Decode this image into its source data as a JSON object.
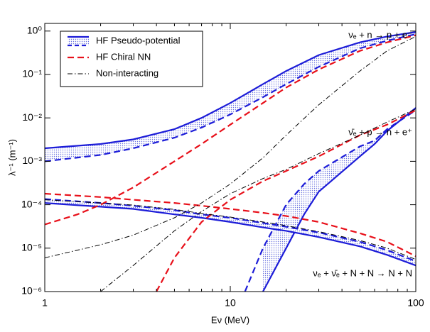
{
  "chart_data": {
    "type": "line",
    "xlabel": "Eν (MeV)",
    "ylabel": "λ⁻¹ (m⁻¹)",
    "xscale": "log",
    "yscale": "log",
    "xlim": [
      1,
      100
    ],
    "ylim": [
      1e-06,
      1.5
    ],
    "xticks": [
      1,
      10,
      100
    ],
    "xminorticks": [
      2,
      3,
      4,
      5,
      6,
      7,
      8,
      9,
      20,
      30,
      40,
      50,
      60,
      70,
      80,
      90
    ],
    "yticks": [
      {
        "value": 1e-06,
        "label": "10⁻⁶"
      },
      {
        "value": 1e-05,
        "label": "10⁻⁵"
      },
      {
        "value": 0.0001,
        "label": "10⁻⁴"
      },
      {
        "value": 0.001,
        "label": "10⁻³"
      },
      {
        "value": 0.01,
        "label": "10⁻²"
      },
      {
        "value": 0.1,
        "label": "10⁻¹"
      },
      {
        "value": 1,
        "label": "10⁰"
      }
    ],
    "legend": "upper left",
    "annotations": [
      "νₑ + n → p + e⁻",
      "ν̄ₑ + p → n + e⁺",
      "νₑ + ν̄ₑ + N + N → N + N"
    ],
    "series": [
      {
        "name": "HF Pseudo-potential",
        "color": "#1c1cd8",
        "bands": [
          {
            "x": [
              1,
              2,
              3,
              5,
              7,
              10,
              15,
              20,
              30,
              50,
              70,
              100
            ],
            "solid": [
              0.002,
              0.0025,
              0.0032,
              0.0055,
              0.01,
              0.022,
              0.06,
              0.12,
              0.28,
              0.55,
              0.75,
              0.95
            ],
            "dashed": [
              0.001,
              0.0014,
              0.002,
              0.0035,
              0.006,
              0.012,
              0.03,
              0.06,
              0.15,
              0.4,
              0.6,
              0.85
            ]
          },
          {
            "x": [
              12,
              15,
              20,
              25,
              30,
              50,
              60,
              70,
              100
            ],
            "solid": [
              null,
              1e-06,
              1e-05,
              6e-05,
              0.0002,
              0.0013,
              0.0025,
              0.005,
              0.017
            ],
            "dashed": [
              1e-06,
              1e-05,
              0.0001,
              0.0003,
              0.0006,
              0.0022,
              0.003,
              0.0055,
              0.015
            ]
          },
          {
            "x": [
              1,
              2,
              3,
              5,
              7,
              10,
              15,
              20,
              30,
              50,
              70,
              100
            ],
            "solid": [
              0.00011,
              9e-05,
              8e-05,
              6e-05,
              5e-05,
              4e-05,
              3e-05,
              2.5e-05,
              1.8e-05,
              1.1e-05,
              7e-06,
              4e-06
            ],
            "dashed": [
              0.000135,
              0.00011,
              9.5e-05,
              7.5e-05,
              6e-05,
              5e-05,
              3.8e-05,
              3.1e-05,
              2.3e-05,
              1.4e-05,
              9e-06,
              5e-06
            ]
          }
        ]
      },
      {
        "name": "HF Chiral NN",
        "color": "#e8101a",
        "style": "dashed",
        "curves": [
          {
            "x": [
              1,
              1.5,
              2,
              3,
              5,
              7,
              10,
              15,
              20,
              30,
              50,
              70,
              100
            ],
            "values": [
              3.5e-05,
              6e-05,
              0.0001,
              0.00025,
              0.001,
              0.0025,
              0.007,
              0.022,
              0.05,
              0.13,
              0.35,
              0.55,
              0.8
            ]
          },
          {
            "x": [
              4,
              5,
              7,
              10,
              15,
              20,
              30,
              50,
              70,
              100
            ],
            "values": [
              1e-06,
              6e-06,
              4e-05,
              0.00013,
              0.00035,
              0.0006,
              0.0013,
              0.004,
              0.007,
              0.015
            ]
          },
          {
            "x": [
              1,
              2,
              3,
              5,
              7,
              10,
              15,
              20,
              30,
              50,
              70,
              100
            ],
            "values": [
              0.00018,
              0.00015,
              0.00013,
              0.00011,
              9.5e-05,
              8e-05,
              6.5e-05,
              5.5e-05,
              4e-05,
              2.2e-05,
              1.4e-05,
              6.5e-06
            ]
          }
        ]
      },
      {
        "name": "Non-interacting",
        "color": "#000000",
        "style": "dashdot",
        "curves": [
          {
            "x": [
              1,
              2,
              3,
              5,
              7,
              10,
              15,
              20,
              30,
              50,
              70,
              100
            ],
            "values": [
              6e-06,
              1.2e-05,
              2e-05,
              5e-05,
              0.00011,
              0.0003,
              0.0012,
              0.004,
              0.02,
              0.12,
              0.35,
              0.75
            ]
          },
          {
            "x": [
              2,
              3,
              5,
              7,
              10,
              15,
              20,
              30,
              50,
              70,
              100
            ],
            "values": [
              1e-06,
              4e-06,
              2.5e-05,
              7e-05,
              0.00018,
              0.0004,
              0.00065,
              0.0015,
              0.004,
              0.008,
              0.016
            ]
          },
          {
            "x": [
              1,
              2,
              3,
              5,
              7,
              10,
              15,
              20,
              30,
              50,
              70,
              100
            ],
            "values": [
              0.00013,
              0.00011,
              9.8e-05,
              7.8e-05,
              6.3e-05,
              5.2e-05,
              4e-05,
              3.3e-05,
              2.4e-05,
              1.5e-05,
              1e-05,
              5.5e-06
            ]
          }
        ]
      }
    ]
  }
}
